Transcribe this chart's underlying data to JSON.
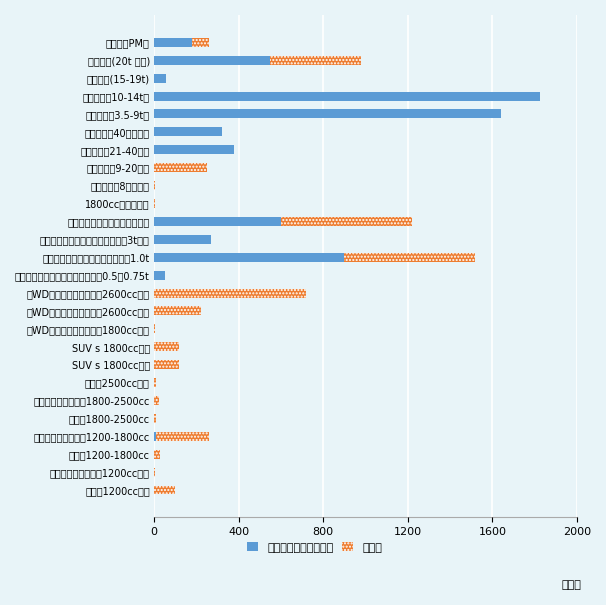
{
  "categories": [
    "原動機（PM）",
    "トラック(20t 以上)",
    "トラック(15-19t)",
    "トラック（10-14t）",
    "トラック（3.5-9t）",
    "大型バス（40人以上）",
    "中型バス（21-40人）",
    "小型バス（9-20人）",
    "小型バス（8人まで）",
    "1800cc以上のバン",
    "ダブル・キャブ・ピックアップ",
    "シングル・キャブ・ピックアップ3tまで",
    "シングル・キャブ・ピックアップ1.0t",
    "シングル・キャブ・ピックアップ0.5，0.75t",
    "４WDステーションワゴン2600cc以上",
    "４WDステーションワゴン2600cc以下",
    "４WDステーションワゴン1800cc以下",
    "SUV s 1800cc以上",
    "SUV s 1800cc以下",
    "セダン2500cc以上",
    "ステーションワゴン1800-2500cc",
    "セダン1800-2500cc",
    "ステーションワゴン1200-1800cc",
    "セダン1200-1800cc",
    "ステーションワゴン1200cc以下",
    "セダン1200cc以下"
  ],
  "semi_knockdown": [
    180,
    550,
    55,
    1826,
    1641,
    320,
    380,
    0,
    0,
    0,
    600,
    270,
    900,
    50,
    0,
    0,
    0,
    0,
    0,
    0,
    0,
    0,
    10,
    0,
    0,
    0
  ],
  "complete": [
    80,
    430,
    0,
    0,
    0,
    0,
    0,
    250,
    5,
    5,
    620,
    0,
    620,
    0,
    720,
    220,
    5,
    120,
    120,
    10,
    25,
    10,
    250,
    30,
    5,
    100
  ],
  "bar_color_semi": "#5B9BD5",
  "bar_color_complete": "#ED7D31",
  "background_color": "#E8F4F8",
  "xlim": [
    0,
    2000
  ],
  "xticks": [
    0,
    400,
    800,
    1200,
    1600,
    2000
  ],
  "legend_semi": "セミ・ノックダウン車",
  "legend_complete": "完成車",
  "unit_label": "（台）"
}
